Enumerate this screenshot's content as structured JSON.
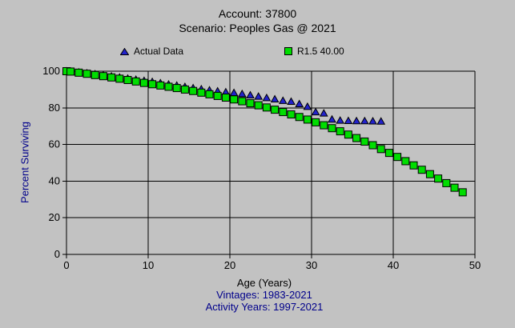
{
  "header": {
    "title_line1": "Account: 37800",
    "title_line2": "Scenario: Peoples Gas @ 2021"
  },
  "colors": {
    "background": "#c2c2c2",
    "grid": "#000000",
    "axis_text": "#000000",
    "title_text": "#000000",
    "legend_text": "#000000",
    "navy_text": "#00008b",
    "actual_marker": "#2222cc",
    "fitted_marker": "#00dd00",
    "marker_edge": "#000000"
  },
  "chart_data": {
    "type": "scatter",
    "title": "Account: 37800",
    "subtitle": "Scenario: Peoples Gas @ 2021",
    "xlabel": "Age (Years)",
    "ylabel": "Percent Surviving",
    "footnotes": [
      "Vintages: 1983-2021",
      "Activity Years: 1997-2021"
    ],
    "xlim": [
      0,
      50
    ],
    "ylim": [
      0,
      100
    ],
    "x_ticks": [
      0,
      10,
      20,
      30,
      40,
      50
    ],
    "y_ticks": [
      0,
      20,
      40,
      60,
      80,
      100
    ],
    "grid": true,
    "legend_position": "top",
    "series": [
      {
        "name": "Actual Data",
        "marker": "triangle",
        "color": "#2222cc",
        "x": [
          0,
          0.5,
          1.5,
          2.5,
          3.5,
          4.5,
          5.5,
          6.5,
          7.5,
          8.5,
          9.5,
          10.5,
          11.5,
          12.5,
          13.5,
          14.5,
          15.5,
          16.5,
          17.5,
          18.5,
          19.5,
          20.5,
          21.5,
          22.5,
          23.5,
          24.5,
          25.5,
          26.5,
          27.5,
          28.5,
          29.5,
          30.5,
          31.5,
          32.5,
          33.5,
          34.5,
          35.5,
          36.5,
          37.5,
          38.5
        ],
        "y": [
          100,
          99.9,
          99.4,
          98.9,
          98.4,
          97.8,
          97.2,
          96.6,
          96.0,
          95.4,
          94.8,
          94.2,
          93.5,
          92.8,
          92.2,
          91.5,
          90.8,
          90.2,
          89.6,
          89.1,
          88.6,
          88.2,
          87.6,
          86.9,
          86.2,
          85.4,
          84.7,
          83.9,
          83.4,
          82.1,
          80.6,
          77.7,
          77.0,
          73.7,
          73.1,
          72.9,
          72.8,
          72.8,
          72.7,
          72.6
        ]
      },
      {
        "name": "R1.5 40.00",
        "marker": "square",
        "color": "#00dd00",
        "x": [
          0,
          0.5,
          1.5,
          2.5,
          3.5,
          4.5,
          5.5,
          6.5,
          7.5,
          8.5,
          9.5,
          10.5,
          11.5,
          12.5,
          13.5,
          14.5,
          15.5,
          16.5,
          17.5,
          18.5,
          19.5,
          20.5,
          21.5,
          22.5,
          23.5,
          24.5,
          25.5,
          26.5,
          27.5,
          28.5,
          29.5,
          30.5,
          31.5,
          32.5,
          33.5,
          34.5,
          35.5,
          36.5,
          37.5,
          38.5,
          39.5,
          40.5,
          41.5,
          42.5,
          43.5,
          44.5,
          45.5,
          46.5,
          47.5,
          48.5
        ],
        "y": [
          100,
          99.8,
          99.2,
          98.6,
          97.9,
          97.3,
          96.6,
          95.9,
          95.2,
          94.4,
          93.6,
          92.9,
          92.2,
          91.5,
          90.8,
          90.0,
          89.2,
          88.3,
          87.4,
          86.5,
          85.6,
          84.6,
          83.6,
          82.5,
          81.4,
          80.2,
          79.0,
          77.7,
          76.4,
          75.0,
          73.6,
          72.1,
          70.5,
          68.9,
          67.2,
          65.4,
          63.5,
          61.6,
          59.6,
          57.5,
          55.4,
          53.2,
          50.9,
          48.6,
          46.2,
          43.8,
          41.4,
          38.9,
          36.4,
          33.9
        ]
      }
    ]
  }
}
